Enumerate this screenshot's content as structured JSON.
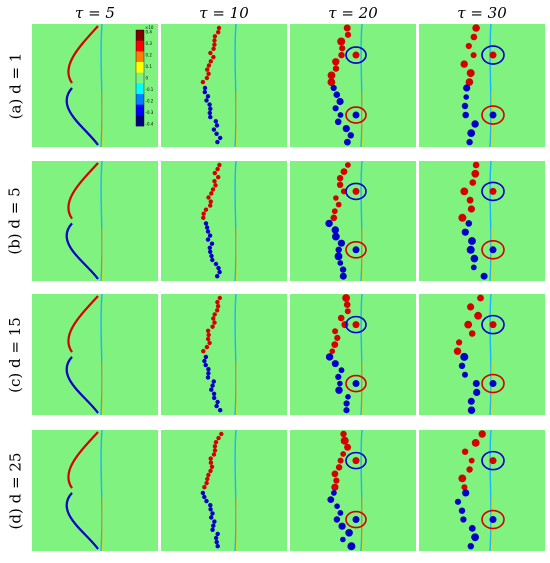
{
  "columns": [
    {
      "label": "τ = 5"
    },
    {
      "label": "τ = 10"
    },
    {
      "label": "τ = 20"
    },
    {
      "label": "τ = 30"
    }
  ],
  "rows": [
    {
      "label": "(a) d = 1"
    },
    {
      "label": "(b) d = 5"
    },
    {
      "label": "(c) d = 15"
    },
    {
      "label": "(d) d = 25"
    }
  ],
  "colorbar": {
    "exponent": "×10",
    "ticks": [
      "0.4",
      "0.3",
      "0.2",
      "0.1",
      "0",
      "-0.1",
      "-0.2",
      "-0.3",
      "-0.4"
    ],
    "colors": [
      "#00007f",
      "#0000ff",
      "#007fff",
      "#00ffff",
      "#80f27f",
      "#ffff00",
      "#ff7f00",
      "#ff0000",
      "#7f0000"
    ]
  },
  "colors": {
    "background": "#80f27f",
    "positive": "#d50000",
    "negative": "#0000c8",
    "weak_positive": "#e6dc00",
    "weak_negative": "#19b4ff"
  }
}
